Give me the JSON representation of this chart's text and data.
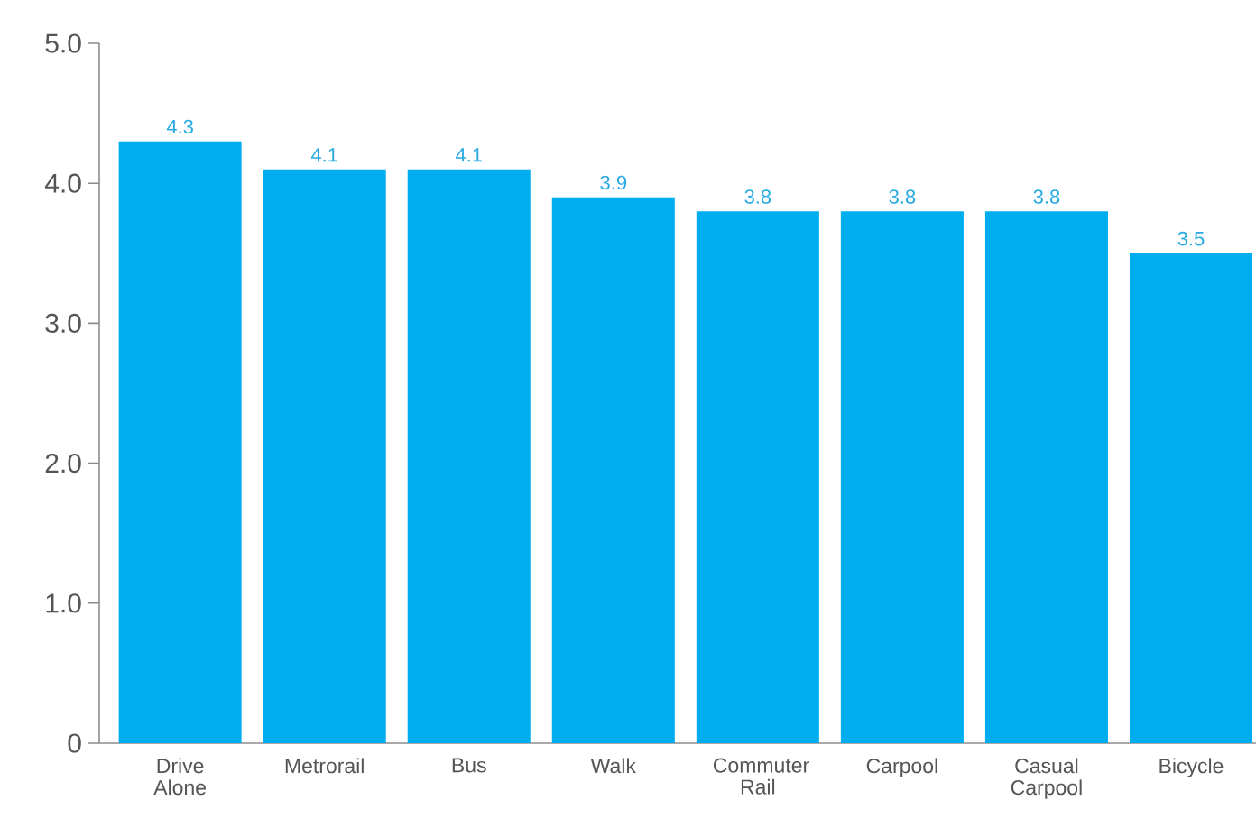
{
  "chart_data": {
    "type": "bar",
    "categories": [
      "Drive Alone",
      "Metrorail",
      "Bus",
      "Walk",
      "Commuter Rail",
      "Carpool",
      "Casual Carpool",
      "Bicycle"
    ],
    "values": [
      4.3,
      4.1,
      4.1,
      3.9,
      3.8,
      3.8,
      3.8,
      3.5
    ],
    "color": "#00aeef",
    "ylim": [
      0,
      5
    ],
    "yticks": [
      0,
      {
        "value": 1,
        "label": "1.0"
      },
      {
        "value": 2,
        "label": "2.0"
      },
      {
        "value": 3,
        "label": "3.0"
      },
      {
        "value": 4,
        "label": "4.0"
      },
      {
        "value": 5,
        "label": "5.0"
      }
    ],
    "data_labels": true,
    "grid": false
  }
}
